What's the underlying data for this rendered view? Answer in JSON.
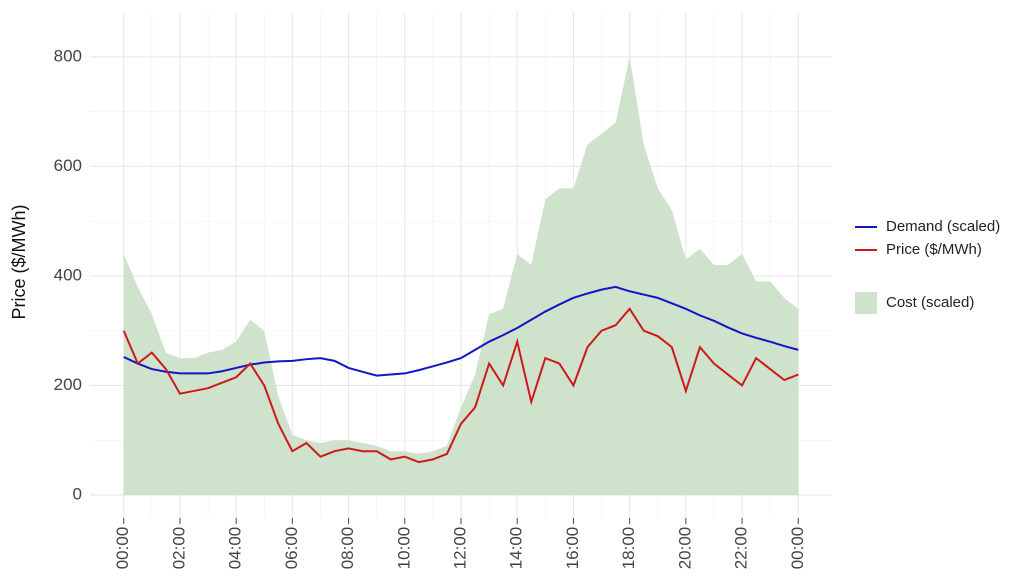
{
  "chart_data": {
    "type": "line",
    "y_label": "Price ($/MWh)",
    "x": [
      0,
      0.5,
      1,
      1.5,
      2,
      2.5,
      3,
      3.5,
      4,
      4.5,
      5,
      5.5,
      6,
      6.5,
      7,
      7.5,
      8,
      8.5,
      9,
      9.5,
      10,
      10.5,
      11,
      11.5,
      12,
      12.5,
      13,
      13.5,
      14,
      14.5,
      15,
      15.5,
      16,
      16.5,
      17,
      17.5,
      18,
      18.5,
      19,
      19.5,
      20,
      20.5,
      21,
      21.5,
      22,
      22.5,
      23,
      23.5,
      24
    ],
    "xlim": [
      -1.2,
      25.2
    ],
    "xticks": [
      {
        "value": 0,
        "label": "00:00"
      },
      {
        "value": 2,
        "label": "02:00"
      },
      {
        "value": 4,
        "label": "04:00"
      },
      {
        "value": 6,
        "label": "06:00"
      },
      {
        "value": 8,
        "label": "08:00"
      },
      {
        "value": 10,
        "label": "10:00"
      },
      {
        "value": 12,
        "label": "12:00"
      },
      {
        "value": 14,
        "label": "14:00"
      },
      {
        "value": 16,
        "label": "16:00"
      },
      {
        "value": 18,
        "label": "18:00"
      },
      {
        "value": 20,
        "label": "20:00"
      },
      {
        "value": 22,
        "label": "22:00"
      },
      {
        "value": 24,
        "label": "00:00"
      }
    ],
    "ylim": [
      -42,
      882
    ],
    "yticks": [
      0,
      200,
      400,
      600,
      800
    ],
    "grid": true,
    "legend": "right",
    "series": [
      {
        "name": "Demand (scaled)",
        "color": "#1414c8",
        "mark": "line",
        "values": [
          252,
          240,
          230,
          225,
          222,
          222,
          222,
          226,
          232,
          238,
          242,
          244,
          245,
          248,
          250,
          245,
          232,
          225,
          218,
          220,
          222,
          228,
          235,
          242,
          250,
          265,
          280,
          292,
          305,
          320,
          335,
          348,
          360,
          368,
          375,
          380,
          372,
          366,
          360,
          350,
          340,
          328,
          318,
          306,
          295,
          287,
          280,
          272,
          265
        ]
      },
      {
        "name": "Price ($/MWh)",
        "color": "#cc1a1a",
        "mark": "line",
        "values": [
          300,
          240,
          260,
          230,
          185,
          190,
          195,
          205,
          215,
          240,
          200,
          130,
          80,
          95,
          70,
          80,
          85,
          80,
          80,
          65,
          70,
          60,
          65,
          75,
          130,
          160,
          240,
          200,
          280,
          170,
          250,
          240,
          200,
          270,
          300,
          310,
          340,
          300,
          290,
          270,
          190,
          270,
          240,
          220,
          200,
          250,
          230,
          210,
          220
        ]
      },
      {
        "name": "Cost (scaled)",
        "color": "#cfe3cc",
        "mark": "area",
        "values": [
          440,
          380,
          330,
          260,
          250,
          250,
          260,
          265,
          280,
          320,
          300,
          180,
          110,
          100,
          95,
          100,
          100,
          95,
          90,
          80,
          80,
          75,
          80,
          90,
          160,
          220,
          330,
          340,
          440,
          420,
          540,
          560,
          560,
          640,
          660,
          680,
          800,
          640,
          560,
          520,
          430,
          450,
          420,
          420,
          440,
          390,
          390,
          360,
          340
        ]
      }
    ]
  }
}
